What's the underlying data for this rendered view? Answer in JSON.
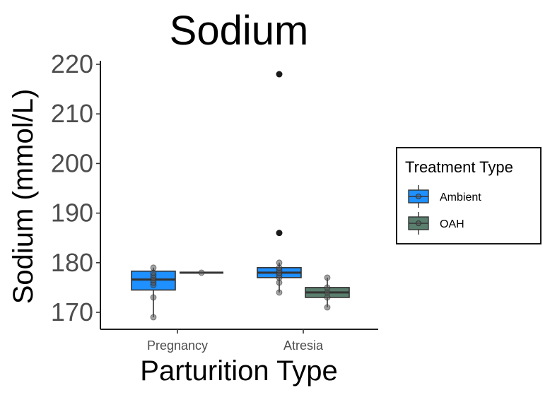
{
  "chart_data": {
    "type": "box",
    "title": "Sodium",
    "xlabel": "Parturition Type",
    "ylabel": "Sodium (mmol/L)",
    "categories": [
      "Pregnancy",
      "Atresia"
    ],
    "ylim": [
      167,
      221
    ],
    "yticks": [
      170,
      180,
      190,
      200,
      210,
      220
    ],
    "grid": false,
    "legend": {
      "title": "Treatment Type",
      "placement": "right"
    },
    "colors": {
      "Ambient": "#1e90ff",
      "OAH": "#5a7f6f",
      "point": "#555555",
      "outlier": "#1a1a1a"
    },
    "series": [
      {
        "name": "Ambient",
        "boxes": [
          {
            "category": "Pregnancy",
            "whisker_low": 169,
            "q1": 174.5,
            "median": 176.6,
            "q3": 178.3,
            "whisker_high": 179,
            "outliers": [],
            "points": [
              169,
              173,
              175.5,
              176,
              176.5,
              177,
              177.5,
              178,
              179
            ]
          },
          {
            "category": "Atresia",
            "whisker_low": 174,
            "q1": 177,
            "median": 178,
            "q3": 179,
            "whisker_high": 180,
            "outliers": [
              218,
              186
            ],
            "points": [
              174,
              176,
              177,
              177.5,
              178,
              178.5,
              179,
              180
            ]
          }
        ]
      },
      {
        "name": "OAH",
        "boxes": [
          {
            "category": "Pregnancy",
            "whisker_low": 178,
            "q1": 178,
            "median": 178,
            "q3": 178,
            "whisker_high": 178,
            "outliers": [],
            "points": [
              178
            ]
          },
          {
            "category": "Atresia",
            "whisker_low": 171,
            "q1": 173,
            "median": 174,
            "q3": 175,
            "whisker_high": 177,
            "outliers": [],
            "points": [
              171,
              173,
              174,
              175,
              177
            ]
          }
        ]
      }
    ]
  }
}
